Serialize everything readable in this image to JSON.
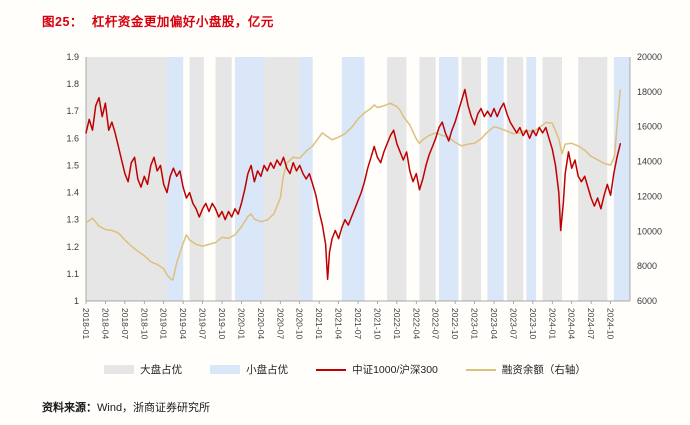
{
  "title": {
    "prefix": "图25：",
    "text": "杠杆资金更加偏好小盘股，亿元"
  },
  "footer": {
    "prefix": "资料来源：",
    "text": "Wind，浙商证券研究所"
  },
  "colors": {
    "title": "#d7000f",
    "ratio_line": "#c00000",
    "margin_line": "#dcc07c",
    "band_large_cap": "#e6e6e6",
    "band_small_cap": "#d9e7f8",
    "axis": "#8c8c8c",
    "axis_text": "#3a3a3a"
  },
  "legend": [
    {
      "label": "大盘占优",
      "type": "band",
      "colorKey": "band_large_cap"
    },
    {
      "label": "小盘占优",
      "type": "band",
      "colorKey": "band_small_cap"
    },
    {
      "label": "中证1000/沪深300",
      "type": "line",
      "colorKey": "ratio_line"
    },
    {
      "label": "融资余额（右轴）",
      "type": "line",
      "colorKey": "margin_line"
    }
  ],
  "chart_data": {
    "type": "line",
    "title": "杠杆资金更加偏好小盘股，亿元",
    "x_unit": "months since 2018-01",
    "x_domain": [
      0,
      84
    ],
    "x_ticks": [
      "2018-01",
      "2018-04",
      "2018-07",
      "2018-10",
      "2019-01",
      "2019-04",
      "2019-07",
      "2019-10",
      "2020-01",
      "2020-04",
      "2020-07",
      "2020-10",
      "2021-01",
      "2021-04",
      "2021-07",
      "2021-10",
      "2022-01",
      "2022-04",
      "2022-07",
      "2022-10",
      "2023-01",
      "2023-04",
      "2023-07",
      "2023-10",
      "2024-01",
      "2024-04",
      "2024-07",
      "2024-10"
    ],
    "x_tick_months": [
      0,
      3,
      6,
      9,
      12,
      15,
      18,
      21,
      24,
      27,
      30,
      33,
      36,
      39,
      42,
      45,
      48,
      51,
      54,
      57,
      60,
      63,
      66,
      69,
      72,
      75,
      78,
      81
    ],
    "left_axis": {
      "min": 1,
      "max": 1.9,
      "ticks": [
        1.9,
        1.8,
        1.7,
        1.6,
        1.5,
        1.4,
        1.3,
        1.2,
        1.1,
        1
      ]
    },
    "right_axis": {
      "min": 6000,
      "max": 20000,
      "ticks": [
        20000,
        18000,
        16000,
        14000,
        12000,
        10000,
        8000,
        6000
      ]
    },
    "grid": false,
    "legend_position": "bottom",
    "bands": [
      {
        "type": "large_cap",
        "start": 0,
        "end": 12.5
      },
      {
        "type": "small_cap",
        "start": 12.5,
        "end": 15
      },
      {
        "type": "large_cap",
        "start": 16,
        "end": 18.2
      },
      {
        "type": "large_cap",
        "start": 20,
        "end": 22.5
      },
      {
        "type": "small_cap",
        "start": 23,
        "end": 27.5
      },
      {
        "type": "large_cap",
        "start": 27.5,
        "end": 33
      },
      {
        "type": "small_cap",
        "start": 33,
        "end": 35
      },
      {
        "type": "small_cap",
        "start": 39.5,
        "end": 43
      },
      {
        "type": "large_cap",
        "start": 46.5,
        "end": 49.5
      },
      {
        "type": "large_cap",
        "start": 51.5,
        "end": 54
      },
      {
        "type": "small_cap",
        "start": 54.5,
        "end": 57.5
      },
      {
        "type": "large_cap",
        "start": 58,
        "end": 61
      },
      {
        "type": "small_cap",
        "start": 62,
        "end": 64.5
      },
      {
        "type": "large_cap",
        "start": 65,
        "end": 67.5
      },
      {
        "type": "small_cap",
        "start": 68,
        "end": 69.5
      },
      {
        "type": "large_cap",
        "start": 70.5,
        "end": 73.5
      },
      {
        "type": "large_cap",
        "start": 76,
        "end": 80.5
      },
      {
        "type": "small_cap",
        "start": 81.5,
        "end": 84
      }
    ],
    "series": [
      {
        "name": "融资余额（右轴）",
        "key": "margin-balance",
        "axis": "right",
        "color": "#dcc07c",
        "points": [
          [
            0,
            10500
          ],
          [
            1,
            10750
          ],
          [
            2,
            10300
          ],
          [
            3,
            10100
          ],
          [
            4,
            10050
          ],
          [
            5,
            9900
          ],
          [
            6,
            9500
          ],
          [
            7,
            9150
          ],
          [
            8,
            8850
          ],
          [
            9,
            8600
          ],
          [
            10,
            8250
          ],
          [
            11,
            8100
          ],
          [
            12,
            7850
          ],
          [
            12.5,
            7500
          ],
          [
            13,
            7300
          ],
          [
            13.4,
            7200
          ],
          [
            14,
            8200
          ],
          [
            15,
            9300
          ],
          [
            15.5,
            9800
          ],
          [
            16,
            9500
          ],
          [
            17,
            9250
          ],
          [
            18,
            9150
          ],
          [
            19,
            9250
          ],
          [
            20,
            9350
          ],
          [
            21,
            9650
          ],
          [
            22,
            9600
          ],
          [
            23,
            9800
          ],
          [
            24,
            10250
          ],
          [
            25,
            10850
          ],
          [
            25.5,
            11000
          ],
          [
            26,
            10700
          ],
          [
            27,
            10550
          ],
          [
            28,
            10650
          ],
          [
            29,
            11000
          ],
          [
            30,
            11900
          ],
          [
            30.5,
            13200
          ],
          [
            31,
            13900
          ],
          [
            32,
            14250
          ],
          [
            33,
            14200
          ],
          [
            34,
            14600
          ],
          [
            35,
            14900
          ],
          [
            36,
            15400
          ],
          [
            36.5,
            15650
          ],
          [
            37,
            15500
          ],
          [
            38,
            15250
          ],
          [
            39,
            15400
          ],
          [
            40,
            15600
          ],
          [
            41,
            15950
          ],
          [
            42,
            16450
          ],
          [
            43,
            16800
          ],
          [
            44,
            17050
          ],
          [
            44.5,
            17250
          ],
          [
            45,
            17100
          ],
          [
            46,
            17200
          ],
          [
            47,
            17350
          ],
          [
            48,
            17150
          ],
          [
            48.5,
            16950
          ],
          [
            49,
            16600
          ],
          [
            50,
            16100
          ],
          [
            51,
            15300
          ],
          [
            51.5,
            15050
          ],
          [
            52,
            15250
          ],
          [
            53,
            15500
          ],
          [
            54,
            15650
          ],
          [
            55,
            15500
          ],
          [
            56,
            15400
          ],
          [
            57,
            15100
          ],
          [
            58,
            14900
          ],
          [
            59,
            15000
          ],
          [
            60,
            15050
          ],
          [
            61,
            15300
          ],
          [
            62,
            15700
          ],
          [
            63,
            16000
          ],
          [
            64,
            15900
          ],
          [
            65,
            15750
          ],
          [
            66,
            15600
          ],
          [
            67,
            15650
          ],
          [
            68,
            15800
          ],
          [
            69,
            15700
          ],
          [
            70,
            15950
          ],
          [
            71,
            16250
          ],
          [
            72,
            16200
          ],
          [
            73,
            15300
          ],
          [
            73.5,
            14450
          ],
          [
            74,
            15000
          ],
          [
            75,
            15050
          ],
          [
            76,
            14900
          ],
          [
            77,
            14650
          ],
          [
            78,
            14300
          ],
          [
            79,
            14100
          ],
          [
            80,
            13900
          ],
          [
            81,
            13800
          ],
          [
            81.6,
            14300
          ],
          [
            82.1,
            16500
          ],
          [
            82.5,
            18100
          ]
        ]
      },
      {
        "name": "中证1000/沪深300",
        "key": "ratio",
        "axis": "left",
        "color": "#c00000",
        "points": [
          [
            0,
            1.62
          ],
          [
            0.5,
            1.67
          ],
          [
            1,
            1.63
          ],
          [
            1.5,
            1.72
          ],
          [
            2,
            1.75
          ],
          [
            2.5,
            1.68
          ],
          [
            3,
            1.73
          ],
          [
            3.5,
            1.63
          ],
          [
            4,
            1.66
          ],
          [
            4.5,
            1.62
          ],
          [
            5,
            1.57
          ],
          [
            5.5,
            1.52
          ],
          [
            6,
            1.47
          ],
          [
            6.5,
            1.44
          ],
          [
            7,
            1.51
          ],
          [
            7.5,
            1.53
          ],
          [
            8,
            1.45
          ],
          [
            8.5,
            1.42
          ],
          [
            9,
            1.46
          ],
          [
            9.5,
            1.43
          ],
          [
            10,
            1.5
          ],
          [
            10.5,
            1.53
          ],
          [
            11,
            1.48
          ],
          [
            11.5,
            1.5
          ],
          [
            12,
            1.43
          ],
          [
            12.5,
            1.4
          ],
          [
            13,
            1.46
          ],
          [
            13.5,
            1.49
          ],
          [
            14,
            1.46
          ],
          [
            14.5,
            1.48
          ],
          [
            15,
            1.42
          ],
          [
            15.5,
            1.38
          ],
          [
            16,
            1.4
          ],
          [
            16.5,
            1.36
          ],
          [
            17,
            1.34
          ],
          [
            17.5,
            1.31
          ],
          [
            18,
            1.34
          ],
          [
            18.5,
            1.36
          ],
          [
            19,
            1.33
          ],
          [
            19.5,
            1.36
          ],
          [
            20,
            1.34
          ],
          [
            20.5,
            1.31
          ],
          [
            21,
            1.33
          ],
          [
            21.5,
            1.3
          ],
          [
            22,
            1.33
          ],
          [
            22.5,
            1.31
          ],
          [
            23,
            1.34
          ],
          [
            23.5,
            1.32
          ],
          [
            24,
            1.36
          ],
          [
            24.5,
            1.41
          ],
          [
            25,
            1.47
          ],
          [
            25.5,
            1.5
          ],
          [
            26,
            1.44
          ],
          [
            26.5,
            1.48
          ],
          [
            27,
            1.46
          ],
          [
            27.5,
            1.5
          ],
          [
            28,
            1.48
          ],
          [
            28.5,
            1.51
          ],
          [
            29,
            1.49
          ],
          [
            29.5,
            1.52
          ],
          [
            30,
            1.5
          ],
          [
            30.5,
            1.53
          ],
          [
            31,
            1.49
          ],
          [
            31.5,
            1.47
          ],
          [
            32,
            1.51
          ],
          [
            32.5,
            1.48
          ],
          [
            33,
            1.5
          ],
          [
            33.5,
            1.47
          ],
          [
            34,
            1.45
          ],
          [
            34.5,
            1.47
          ],
          [
            35,
            1.43
          ],
          [
            35.5,
            1.39
          ],
          [
            36,
            1.33
          ],
          [
            36.5,
            1.28
          ],
          [
            37,
            1.21
          ],
          [
            37.3,
            1.08
          ],
          [
            37.6,
            1.18
          ],
          [
            38,
            1.23
          ],
          [
            38.5,
            1.26
          ],
          [
            39,
            1.23
          ],
          [
            39.5,
            1.27
          ],
          [
            40,
            1.3
          ],
          [
            40.5,
            1.28
          ],
          [
            41,
            1.31
          ],
          [
            41.5,
            1.34
          ],
          [
            42,
            1.37
          ],
          [
            42.5,
            1.4
          ],
          [
            43,
            1.44
          ],
          [
            43.5,
            1.49
          ],
          [
            44,
            1.53
          ],
          [
            44.5,
            1.57
          ],
          [
            45,
            1.53
          ],
          [
            45.5,
            1.51
          ],
          [
            46,
            1.55
          ],
          [
            46.5,
            1.58
          ],
          [
            47,
            1.61
          ],
          [
            47.5,
            1.63
          ],
          [
            48,
            1.58
          ],
          [
            48.5,
            1.55
          ],
          [
            49,
            1.52
          ],
          [
            49.5,
            1.55
          ],
          [
            50,
            1.48
          ],
          [
            50.5,
            1.44
          ],
          [
            51,
            1.47
          ],
          [
            51.5,
            1.41
          ],
          [
            52,
            1.45
          ],
          [
            52.5,
            1.5
          ],
          [
            53,
            1.54
          ],
          [
            53.5,
            1.57
          ],
          [
            54,
            1.6
          ],
          [
            54.5,
            1.64
          ],
          [
            55,
            1.66
          ],
          [
            55.5,
            1.62
          ],
          [
            56,
            1.59
          ],
          [
            56.5,
            1.63
          ],
          [
            57,
            1.66
          ],
          [
            57.5,
            1.7
          ],
          [
            58,
            1.74
          ],
          [
            58.5,
            1.78
          ],
          [
            59,
            1.72
          ],
          [
            59.5,
            1.68
          ],
          [
            60,
            1.65
          ],
          [
            60.5,
            1.69
          ],
          [
            61,
            1.71
          ],
          [
            61.5,
            1.68
          ],
          [
            62,
            1.7
          ],
          [
            62.5,
            1.68
          ],
          [
            63,
            1.71
          ],
          [
            63.5,
            1.68
          ],
          [
            64,
            1.71
          ],
          [
            64.5,
            1.73
          ],
          [
            65,
            1.69
          ],
          [
            65.5,
            1.66
          ],
          [
            66,
            1.64
          ],
          [
            66.5,
            1.62
          ],
          [
            67,
            1.64
          ],
          [
            67.5,
            1.61
          ],
          [
            68,
            1.63
          ],
          [
            68.5,
            1.6
          ],
          [
            69,
            1.63
          ],
          [
            69.5,
            1.61
          ],
          [
            70,
            1.64
          ],
          [
            70.5,
            1.62
          ],
          [
            71,
            1.64
          ],
          [
            71.5,
            1.6
          ],
          [
            72,
            1.56
          ],
          [
            72.5,
            1.5
          ],
          [
            73,
            1.4
          ],
          [
            73.3,
            1.26
          ],
          [
            73.7,
            1.36
          ],
          [
            74,
            1.47
          ],
          [
            74.5,
            1.55
          ],
          [
            75,
            1.49
          ],
          [
            75.5,
            1.52
          ],
          [
            76,
            1.46
          ],
          [
            76.5,
            1.44
          ],
          [
            77,
            1.46
          ],
          [
            77.5,
            1.42
          ],
          [
            78,
            1.38
          ],
          [
            78.5,
            1.35
          ],
          [
            79,
            1.38
          ],
          [
            79.5,
            1.34
          ],
          [
            80,
            1.39
          ],
          [
            80.5,
            1.43
          ],
          [
            81,
            1.39
          ],
          [
            81.5,
            1.47
          ],
          [
            82,
            1.53
          ],
          [
            82.5,
            1.58
          ]
        ]
      }
    ]
  }
}
